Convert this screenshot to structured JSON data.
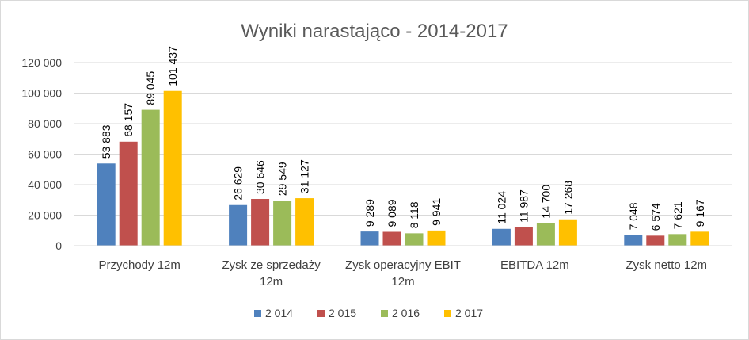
{
  "chart_data": {
    "type": "bar",
    "title": "Wyniki narastająco - 2014-2017",
    "categories": [
      [
        "Przychody 12m"
      ],
      [
        "Zysk ze sprzedaży",
        "12m"
      ],
      [
        "Zysk operacyjny EBIT",
        "12m"
      ],
      [
        "EBITDA 12m"
      ],
      [
        "Zysk netto 12m"
      ]
    ],
    "series": [
      {
        "name": "2 014",
        "color": "#4f81bd",
        "values": [
          53883,
          26629,
          9289,
          11024,
          7048
        ],
        "labels": [
          "53 883",
          "26 629",
          "9 289",
          "11 024",
          "7 048"
        ]
      },
      {
        "name": "2 015",
        "color": "#c0504d",
        "values": [
          68157,
          30646,
          9089,
          11987,
          6574
        ],
        "labels": [
          "68 157",
          "30 646",
          "9 089",
          "11 987",
          "6 574"
        ]
      },
      {
        "name": "2 016",
        "color": "#9bbb59",
        "values": [
          89045,
          29549,
          8118,
          14700,
          7621
        ],
        "labels": [
          "89 045",
          "29 549",
          "8 118",
          "14 700",
          "7 621"
        ]
      },
      {
        "name": "2 017",
        "color": "#ffc000",
        "values": [
          101437,
          31127,
          9941,
          17268,
          9167
        ],
        "labels": [
          "101 437",
          "31 127",
          "9 941",
          "17 268",
          "9 167"
        ]
      }
    ],
    "yticks": [
      0,
      20000,
      40000,
      60000,
      80000,
      100000,
      120000
    ],
    "ytick_labels": [
      "0",
      "20 000",
      "40 000",
      "60 000",
      "80 000",
      "100 000",
      "120 000"
    ],
    "ylim": [
      0,
      120000
    ],
    "grid": true,
    "legend": "bottom"
  }
}
